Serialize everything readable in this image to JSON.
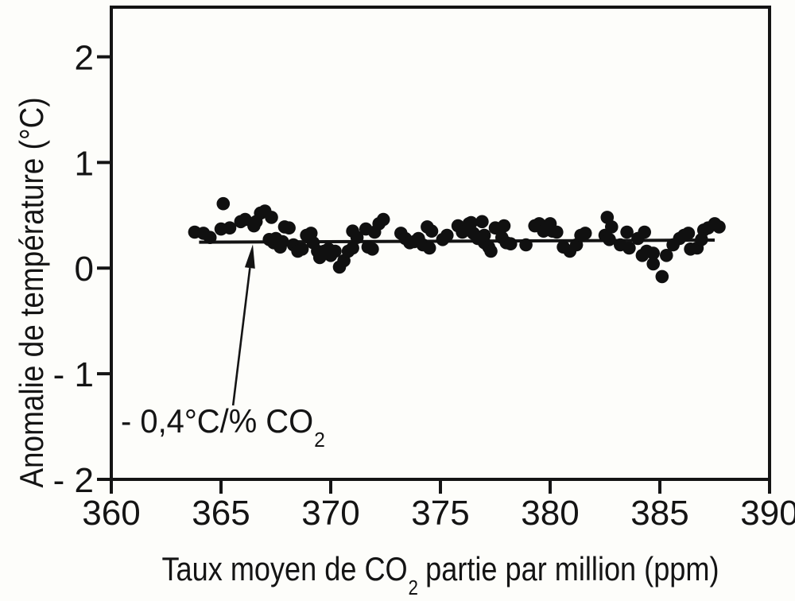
{
  "figure": {
    "background": "#fdfdfa",
    "ink": "#141414"
  },
  "chart_data": {
    "type": "scatter",
    "title": "",
    "ylabel": "Anomalie de température (°C)",
    "xlabel_parts": {
      "pre": "Taux moyen de CO",
      "sub": "2",
      "post": " partie par million (ppm)"
    },
    "xlim": [
      360,
      390
    ],
    "ylim": [
      -2,
      2.47
    ],
    "x_ticks": [
      {
        "value": 360,
        "label": "360"
      },
      {
        "value": 365,
        "label": "365"
      },
      {
        "value": 370,
        "label": "370"
      },
      {
        "value": 375,
        "label": "375"
      },
      {
        "value": 380,
        "label": "380"
      },
      {
        "value": 385,
        "label": "385"
      },
      {
        "value": 390,
        "label": "390"
      }
    ],
    "y_ticks": [
      {
        "value": 2,
        "label": "2"
      },
      {
        "value": 1,
        "label": "1"
      },
      {
        "value": 0,
        "label": "0"
      },
      {
        "value": -1,
        "label": "- 1"
      },
      {
        "value": -2,
        "label": "- 2"
      }
    ],
    "grid": false,
    "legend": null,
    "marker": {
      "shape": "circle",
      "radius_px": 8.3,
      "color": "#101010"
    },
    "points": [
      [
        363.8,
        0.34
      ],
      [
        364.2,
        0.33
      ],
      [
        364.5,
        0.29
      ],
      [
        365.0,
        0.37
      ],
      [
        365.1,
        0.61
      ],
      [
        365.4,
        0.38
      ],
      [
        365.9,
        0.44
      ],
      [
        366.1,
        0.46
      ],
      [
        366.5,
        0.4
      ],
      [
        366.6,
        0.44
      ],
      [
        366.8,
        0.52
      ],
      [
        367.0,
        0.54
      ],
      [
        367.2,
        0.27
      ],
      [
        367.3,
        0.48
      ],
      [
        367.4,
        0.24
      ],
      [
        367.5,
        0.28
      ],
      [
        367.7,
        0.2
      ],
      [
        367.8,
        0.25
      ],
      [
        367.9,
        0.39
      ],
      [
        368.1,
        0.38
      ],
      [
        368.3,
        0.22
      ],
      [
        368.5,
        0.16
      ],
      [
        368.7,
        0.18
      ],
      [
        368.9,
        0.31
      ],
      [
        369.1,
        0.33
      ],
      [
        369.2,
        0.24
      ],
      [
        369.4,
        0.16
      ],
      [
        369.5,
        0.1
      ],
      [
        369.7,
        0.16
      ],
      [
        369.9,
        0.18
      ],
      [
        370.0,
        0.12
      ],
      [
        370.2,
        0.16
      ],
      [
        370.4,
        0.01
      ],
      [
        370.6,
        0.07
      ],
      [
        370.8,
        0.16
      ],
      [
        371.0,
        0.19
      ],
      [
        371.0,
        0.35
      ],
      [
        371.2,
        0.29
      ],
      [
        371.6,
        0.37
      ],
      [
        371.7,
        0.2
      ],
      [
        371.9,
        0.18
      ],
      [
        372.0,
        0.34
      ],
      [
        372.2,
        0.42
      ],
      [
        372.4,
        0.46
      ],
      [
        373.2,
        0.33
      ],
      [
        373.4,
        0.28
      ],
      [
        373.6,
        0.24
      ],
      [
        373.8,
        0.25
      ],
      [
        374.0,
        0.28
      ],
      [
        374.2,
        0.22
      ],
      [
        374.4,
        0.39
      ],
      [
        374.5,
        0.19
      ],
      [
        374.6,
        0.35
      ],
      [
        375.1,
        0.27
      ],
      [
        375.3,
        0.31
      ],
      [
        375.8,
        0.4
      ],
      [
        376.0,
        0.34
      ],
      [
        376.3,
        0.42
      ],
      [
        376.4,
        0.43
      ],
      [
        376.5,
        0.33
      ],
      [
        376.7,
        0.28
      ],
      [
        376.9,
        0.44
      ],
      [
        377.0,
        0.31
      ],
      [
        377.0,
        0.24
      ],
      [
        377.2,
        0.2
      ],
      [
        377.3,
        0.16
      ],
      [
        377.5,
        0.38
      ],
      [
        377.7,
        0.37
      ],
      [
        377.8,
        0.29
      ],
      [
        377.9,
        0.4
      ],
      [
        378.0,
        0.24
      ],
      [
        378.2,
        0.23
      ],
      [
        378.9,
        0.22
      ],
      [
        379.3,
        0.4
      ],
      [
        379.5,
        0.42
      ],
      [
        379.7,
        0.35
      ],
      [
        380.0,
        0.42
      ],
      [
        380.1,
        0.35
      ],
      [
        380.3,
        0.34
      ],
      [
        380.6,
        0.2
      ],
      [
        380.9,
        0.16
      ],
      [
        381.2,
        0.22
      ],
      [
        381.4,
        0.31
      ],
      [
        381.6,
        0.33
      ],
      [
        382.5,
        0.31
      ],
      [
        382.6,
        0.48
      ],
      [
        382.7,
        0.27
      ],
      [
        382.8,
        0.39
      ],
      [
        383.2,
        0.22
      ],
      [
        383.5,
        0.34
      ],
      [
        383.6,
        0.19
      ],
      [
        384.0,
        0.28
      ],
      [
        384.2,
        0.12
      ],
      [
        384.3,
        0.34
      ],
      [
        384.4,
        0.16
      ],
      [
        384.7,
        0.14
      ],
      [
        384.7,
        0.04
      ],
      [
        385.1,
        -0.08
      ],
      [
        385.3,
        0.12
      ],
      [
        385.6,
        0.22
      ],
      [
        385.9,
        0.28
      ],
      [
        386.1,
        0.31
      ],
      [
        386.3,
        0.33
      ],
      [
        386.4,
        0.18
      ],
      [
        386.7,
        0.19
      ],
      [
        386.9,
        0.27
      ],
      [
        387.0,
        0.36
      ],
      [
        387.2,
        0.38
      ],
      [
        387.5,
        0.42
      ],
      [
        387.7,
        0.39
      ]
    ],
    "trend_line": {
      "x1": 364.0,
      "y1": 0.245,
      "x2": 387.5,
      "y2": 0.265
    },
    "annotation": {
      "text_pre": "- 0,4°C/% CO",
      "text_sub": "2",
      "arrow": {
        "from": [
          365.55,
          -1.3
        ],
        "to": [
          366.45,
          0.225
        ]
      }
    }
  }
}
